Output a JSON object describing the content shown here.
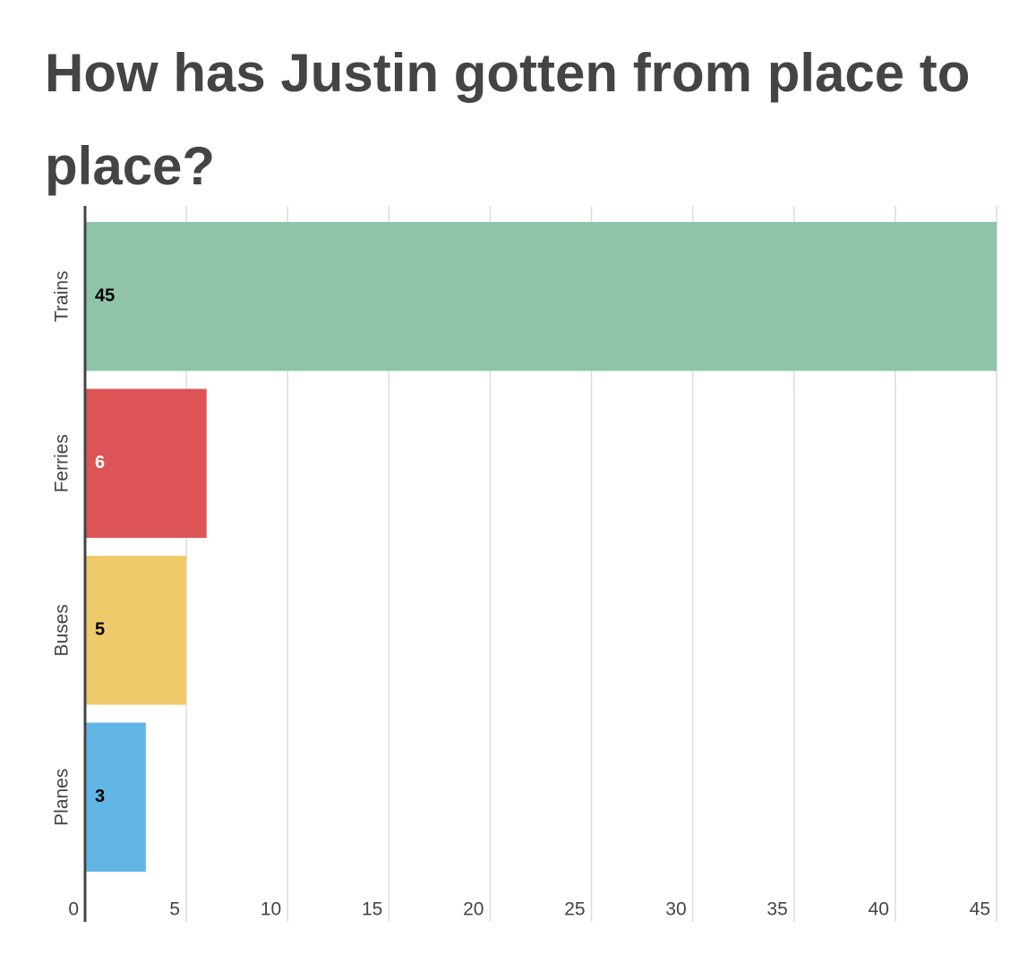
{
  "chart_data": {
    "type": "bar",
    "orientation": "horizontal",
    "title": "How has Justin gotten from place to place?",
    "categories": [
      "Trains",
      "Ferries",
      "Buses",
      "Planes"
    ],
    "values": [
      45,
      6,
      5,
      3
    ],
    "colors": [
      "#8fc4a8",
      "#dd5457",
      "#efca6a",
      "#62b6e6"
    ],
    "value_label_colors": [
      "#000000",
      "#ffffff",
      "#000000",
      "#000000"
    ],
    "xlim": [
      0,
      45
    ],
    "xticks": [
      0,
      5,
      10,
      15,
      20,
      25,
      30,
      35,
      40,
      45
    ],
    "grid": true
  }
}
